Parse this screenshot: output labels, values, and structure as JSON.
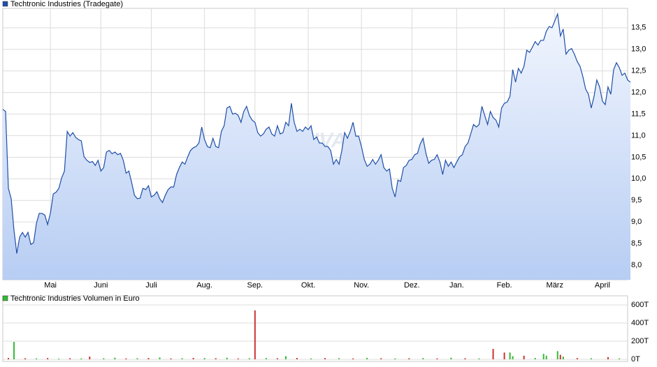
{
  "chart_data": [
    {
      "type": "line",
      "title": "Techtronic Industries (Tradegate)",
      "watermark": "ARIVA",
      "color": "#1f4fa8",
      "legend_color": "#1f4fa8",
      "values": [
        11.61,
        11.56,
        9.78,
        9.54,
        8.81,
        8.27,
        8.65,
        8.76,
        8.65,
        8.76,
        8.48,
        8.52,
        8.97,
        9.2,
        9.2,
        9.16,
        8.94,
        9.21,
        9.65,
        9.69,
        9.78,
        10.02,
        10.18,
        11.1,
        10.99,
        11.07,
        10.96,
        10.91,
        10.88,
        10.51,
        10.43,
        10.38,
        10.4,
        10.31,
        10.43,
        10.18,
        10.26,
        10.62,
        10.66,
        10.58,
        10.62,
        10.56,
        10.59,
        10.43,
        10.13,
        10.18,
        9.91,
        9.62,
        9.54,
        9.55,
        9.78,
        9.75,
        9.84,
        9.58,
        9.62,
        9.7,
        9.54,
        9.45,
        9.62,
        9.75,
        9.81,
        9.81,
        10.1,
        10.26,
        10.39,
        10.34,
        10.51,
        10.66,
        10.72,
        10.75,
        10.83,
        11.2,
        10.91,
        10.75,
        10.72,
        10.94,
        10.75,
        10.72,
        11.1,
        11.23,
        11.64,
        11.68,
        11.5,
        11.52,
        11.47,
        11.31,
        11.56,
        11.68,
        11.47,
        11.36,
        11.31,
        11.07,
        10.99,
        11.04,
        11.15,
        11.2,
        11.04,
        10.99,
        11.23,
        11.04,
        11.07,
        11.31,
        11.23,
        11.75,
        11.31,
        11.1,
        11.15,
        11.1,
        11.2,
        11.14,
        11.23,
        10.91,
        10.97,
        10.83,
        10.83,
        10.75,
        10.75,
        10.66,
        10.34,
        10.45,
        10.34,
        10.66,
        11.07,
        10.94,
        11.1,
        11.31,
        10.99,
        10.99,
        10.75,
        10.45,
        10.29,
        10.34,
        10.45,
        10.34,
        10.43,
        10.56,
        10.26,
        10.18,
        10.23,
        9.78,
        9.58,
        9.97,
        9.94,
        10.26,
        10.31,
        10.43,
        10.45,
        10.56,
        10.59,
        10.81,
        10.94,
        10.59,
        10.36,
        10.43,
        10.45,
        10.56,
        10.39,
        10.1,
        10.43,
        10.29,
        10.39,
        10.26,
        10.39,
        10.51,
        10.56,
        10.75,
        10.83,
        11.04,
        11.26,
        11.2,
        11.26,
        11.68,
        11.47,
        11.26,
        11.56,
        11.42,
        11.36,
        11.2,
        11.64,
        11.75,
        11.78,
        11.91,
        12.53,
        12.24,
        12.56,
        12.45,
        12.61,
        12.98,
        12.93,
        13.05,
        13.18,
        13.1,
        13.21,
        13.21,
        13.42,
        13.53,
        13.5,
        13.66,
        13.82,
        13.31,
        13.47,
        12.89,
        12.98,
        13.02,
        12.89,
        12.72,
        12.61,
        12.37,
        12.08,
        11.96,
        11.64,
        11.91,
        12.29,
        12.13,
        11.8,
        11.72,
        12.13,
        11.96,
        12.53,
        12.69,
        12.58,
        12.4,
        12.45,
        12.29,
        12.24
      ],
      "xlim": [
        0,
        223
      ],
      "xticks": [
        {
          "value": 17,
          "label": "Mai"
        },
        {
          "value": 35,
          "label": "Juni"
        },
        {
          "value": 53,
          "label": "Juli"
        },
        {
          "value": 72,
          "label": "Aug."
        },
        {
          "value": 90,
          "label": "Sep."
        },
        {
          "value": 109,
          "label": "Okt."
        },
        {
          "value": 128,
          "label": "Nov."
        },
        {
          "value": 146,
          "label": "Dez."
        },
        {
          "value": 162,
          "label": "Jan."
        },
        {
          "value": 179,
          "label": "Feb."
        },
        {
          "value": 197,
          "label": "März"
        },
        {
          "value": 214,
          "label": "April"
        }
      ],
      "ylim": [
        7.66,
        13.95
      ],
      "yticks": [
        {
          "value": 8,
          "label": "8,0"
        },
        {
          "value": 8.5,
          "label": "8,5"
        },
        {
          "value": 9,
          "label": "9,0"
        },
        {
          "value": 9.5,
          "label": "9,5"
        },
        {
          "value": 10,
          "label": "10,0"
        },
        {
          "value": 10.5,
          "label": "10,5"
        },
        {
          "value": 11,
          "label": "11,0"
        },
        {
          "value": 11.5,
          "label": "11,5"
        },
        {
          "value": 12,
          "label": "12,0"
        },
        {
          "value": 12.5,
          "label": "12,5"
        },
        {
          "value": 13,
          "label": "13,0"
        },
        {
          "value": 13.5,
          "label": "13,5"
        }
      ],
      "grid": true
    },
    {
      "type": "bar",
      "title": "Techtronic Industries Volumen in Euro",
      "legend_color": "#33bb33",
      "x": [
        2,
        4,
        8,
        12,
        16,
        20,
        24,
        28,
        31,
        36,
        40,
        44,
        48,
        52,
        56,
        60,
        64,
        68,
        72,
        76,
        80,
        84,
        88,
        90,
        94,
        98,
        101,
        105,
        110,
        115,
        120,
        125,
        130,
        135,
        140,
        145,
        150,
        155,
        160,
        165,
        170,
        175,
        179,
        181,
        182,
        186,
        190,
        193,
        194,
        198,
        199,
        200,
        205,
        210,
        216,
        220
      ],
      "values": [
        15,
        192,
        12,
        10,
        14,
        8,
        12,
        10,
        30,
        12,
        18,
        10,
        12,
        14,
        20,
        10,
        12,
        16,
        14,
        12,
        18,
        10,
        12,
        540,
        14,
        12,
        35,
        15,
        10,
        14,
        12,
        10,
        16,
        12,
        10,
        12,
        14,
        10,
        18,
        12,
        10,
        115,
        75,
        75,
        35,
        40,
        15,
        60,
        40,
        90,
        50,
        30,
        14,
        12,
        25,
        10
      ],
      "colors": [
        "#cc3333",
        "#33bb33",
        "#cc3333",
        "#33bb33",
        "#cc3333",
        "#33bb33",
        "#cc3333",
        "#33bb33",
        "#cc3333",
        "#33bb33",
        "#33bb33",
        "#cc3333",
        "#33bb33",
        "#cc3333",
        "#33bb33",
        "#cc3333",
        "#33bb33",
        "#cc3333",
        "#33bb33",
        "#cc3333",
        "#33bb33",
        "#cc3333",
        "#33bb33",
        "#cc3333",
        "#33bb33",
        "#cc3333",
        "#33bb33",
        "#cc3333",
        "#33bb33",
        "#cc3333",
        "#33bb33",
        "#cc3333",
        "#33bb33",
        "#cc3333",
        "#33bb33",
        "#cc3333",
        "#33bb33",
        "#cc3333",
        "#33bb33",
        "#cc3333",
        "#33bb33",
        "#cc3333",
        "#cc3333",
        "#33bb33",
        "#33bb33",
        "#cc3333",
        "#33bb33",
        "#33bb33",
        "#33bb33",
        "#33bb33",
        "#cc3333",
        "#33bb33",
        "#cc3333",
        "#33bb33",
        "#cc3333",
        "#33bb33"
      ],
      "xlim": [
        0,
        223
      ],
      "ylim": [
        -23,
        700
      ],
      "yticks": [
        {
          "value": 0,
          "label": "0T"
        },
        {
          "value": 200,
          "label": "200T"
        },
        {
          "value": 400,
          "label": "400T"
        },
        {
          "value": 600,
          "label": "600T"
        }
      ],
      "grid": true
    }
  ]
}
